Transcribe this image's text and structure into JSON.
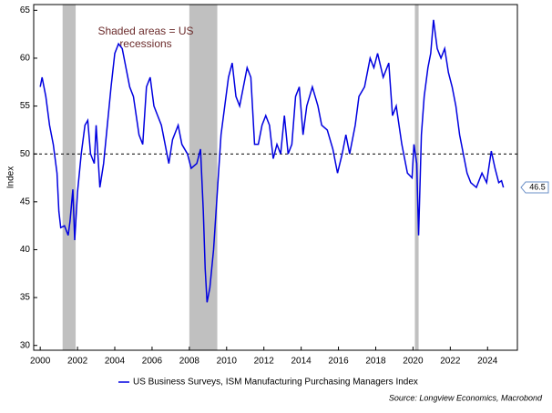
{
  "chart_data": {
    "type": "line",
    "annotation": [
      "Shaded areas = US",
      "recessions"
    ],
    "ylabel": "Index",
    "source": "Source: Longview Economics, Macrobond",
    "xlim": [
      1999.65,
      2025.6
    ],
    "ylim": [
      29.5,
      65.6
    ],
    "xticks": [
      2000,
      2002,
      2004,
      2006,
      2008,
      2010,
      2012,
      2014,
      2016,
      2018,
      2020,
      2022,
      2024
    ],
    "yticks": [
      30,
      35,
      40,
      45,
      50,
      55,
      60,
      65
    ],
    "reference_line": 50,
    "recessions": [
      [
        2001.2,
        2001.9
      ],
      [
        2008.0,
        2009.5
      ],
      [
        2020.1,
        2020.3
      ]
    ],
    "recession_color": "#c0c0c0",
    "x": [
      2000.0,
      2000.1,
      2000.3,
      2000.5,
      2000.7,
      2000.9,
      2001.0,
      2001.1,
      2001.3,
      2001.5,
      2001.6,
      2001.75,
      2001.85,
      2002.0,
      2002.2,
      2002.4,
      2002.55,
      2002.7,
      2002.9,
      2003.0,
      2003.2,
      2003.4,
      2003.6,
      2003.8,
      2004.0,
      2004.2,
      2004.4,
      2004.6,
      2004.8,
      2005.0,
      2005.3,
      2005.5,
      2005.7,
      2005.9,
      2006.1,
      2006.3,
      2006.5,
      2006.7,
      2006.9,
      2007.1,
      2007.4,
      2007.6,
      2007.9,
      2008.1,
      2008.4,
      2008.6,
      2008.75,
      2008.85,
      2008.95,
      2009.1,
      2009.3,
      2009.5,
      2009.7,
      2009.9,
      2010.1,
      2010.3,
      2010.5,
      2010.7,
      2010.9,
      2011.1,
      2011.3,
      2011.5,
      2011.7,
      2011.9,
      2012.1,
      2012.3,
      2012.5,
      2012.7,
      2012.9,
      2013.1,
      2013.3,
      2013.5,
      2013.7,
      2013.9,
      2014.1,
      2014.3,
      2014.6,
      2014.9,
      2015.1,
      2015.4,
      2015.7,
      2015.95,
      2016.2,
      2016.4,
      2016.6,
      2016.9,
      2017.1,
      2017.4,
      2017.7,
      2017.9,
      2018.1,
      2018.4,
      2018.7,
      2018.9,
      2019.1,
      2019.4,
      2019.7,
      2019.95,
      2020.05,
      2020.2,
      2020.3,
      2020.45,
      2020.6,
      2020.8,
      2020.95,
      2021.1,
      2021.3,
      2021.5,
      2021.7,
      2021.9,
      2022.1,
      2022.3,
      2022.5,
      2022.7,
      2022.9,
      2023.1,
      2023.4,
      2023.7,
      2023.95,
      2024.1,
      2024.2,
      2024.4,
      2024.6,
      2024.75,
      2024.85
    ],
    "series": [
      {
        "name": "US Business Surveys, ISM Manufacturing Purchasing Managers Index",
        "color": "#0000e0",
        "values": [
          57,
          58,
          56,
          53,
          51,
          48,
          44,
          42.3,
          42.5,
          41.5,
          43,
          46.3,
          41,
          46,
          50,
          53,
          53.5,
          50,
          49,
          53,
          46.5,
          49,
          53,
          57,
          60.5,
          61.5,
          61,
          59,
          57,
          56,
          52,
          51,
          57,
          58,
          55,
          54,
          53,
          51,
          49,
          51.5,
          53,
          51,
          50,
          48.5,
          49,
          50.5,
          44,
          38,
          34.5,
          36,
          40,
          46,
          52,
          55,
          58,
          59.5,
          56,
          55,
          57,
          59,
          58,
          51,
          51,
          53,
          54,
          53,
          49.5,
          51,
          50,
          54,
          50,
          51,
          56,
          57,
          52,
          55,
          57,
          55,
          53,
          52.5,
          50.5,
          48,
          50,
          52,
          50,
          53,
          56,
          57,
          60,
          59,
          60.5,
          58,
          59.5,
          54,
          55,
          51,
          48,
          47.5,
          51,
          49,
          41.5,
          52,
          56,
          59,
          60.5,
          64,
          61,
          60,
          61,
          58.5,
          57,
          55,
          52,
          50,
          48,
          47,
          46.5,
          48,
          47,
          49,
          50.3,
          48.5,
          47,
          47.2,
          46.5
        ]
      }
    ]
  }
}
